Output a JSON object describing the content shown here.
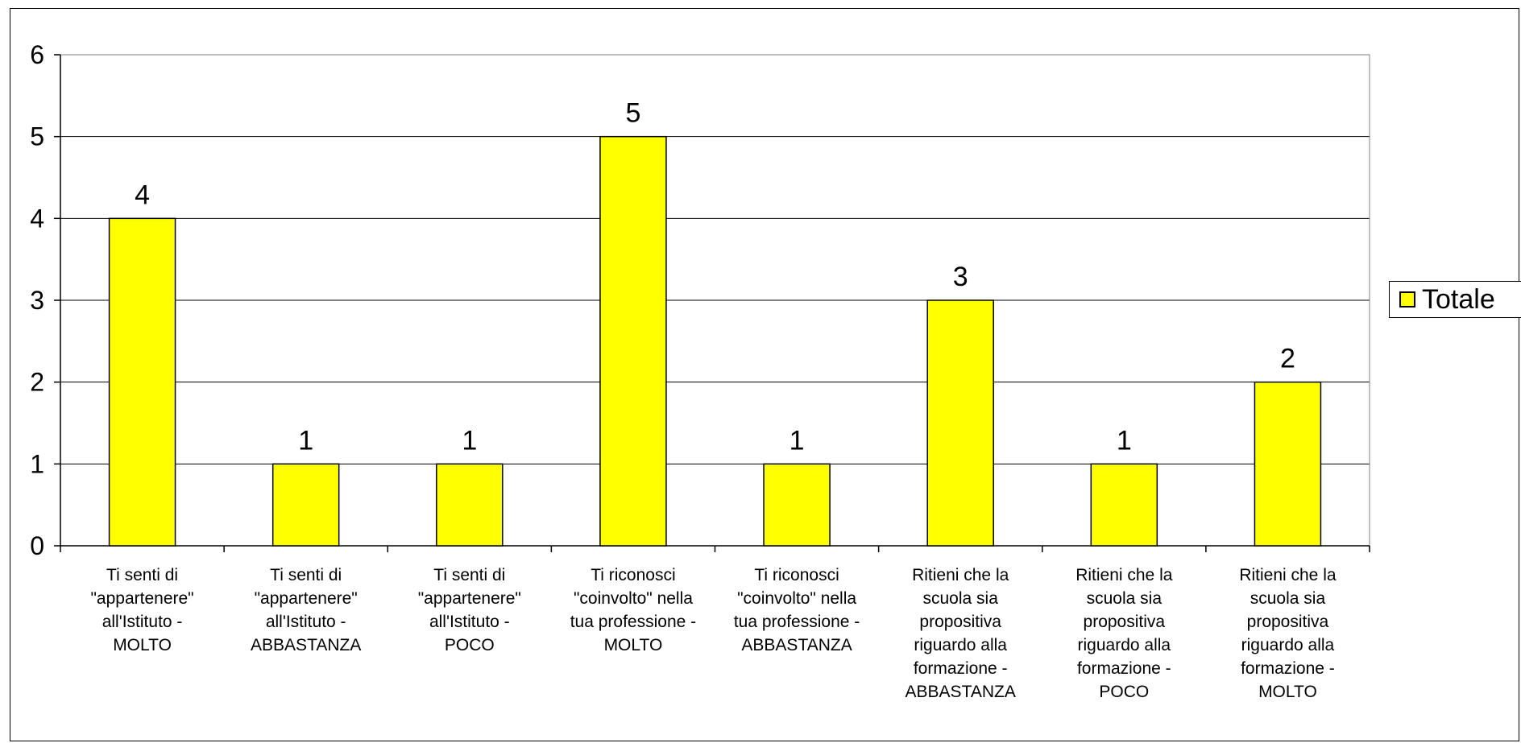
{
  "chart_data": {
    "type": "bar",
    "title": "",
    "xlabel": "",
    "ylabel": "",
    "ylim": [
      0,
      6
    ],
    "yticks": [
      "0",
      "1",
      "2",
      "3",
      "4",
      "5",
      "6"
    ],
    "grid": true,
    "legend_position": "right",
    "bar_color": "#ffff00",
    "categories": [
      "Ti senti di \"appartenere\" all'Istituto - MOLTO",
      "Ti senti di \"appartenere\" all'Istituto - ABBASTANZA",
      "Ti senti di \"appartenere\" all'Istituto - POCO",
      "Ti riconosci \"coinvolto\" nella tua professione - MOLTO",
      "Ti riconosci \"coinvolto\" nella tua professione - ABBASTANZA",
      "Ritieni che la scuola sia propositiva riguardo alla formazione - ABBASTANZA",
      "Ritieni che la scuola sia propositiva riguardo alla formazione - POCO",
      "Ritieni che la scuola sia propositiva riguardo alla formazione - MOLTO"
    ],
    "category_label_lines": [
      [
        "Ti senti di",
        "\"appartenere\"",
        "all'Istituto -",
        "MOLTO"
      ],
      [
        "Ti senti di",
        "\"appartenere\"",
        "all'Istituto -",
        "ABBASTANZA"
      ],
      [
        "Ti senti di",
        "\"appartenere\"",
        "all'Istituto -",
        "POCO"
      ],
      [
        "Ti riconosci",
        "\"coinvolto\" nella",
        "tua professione -",
        "MOLTO"
      ],
      [
        "Ti riconosci",
        "\"coinvolto\" nella",
        "tua professione -",
        "ABBASTANZA"
      ],
      [
        "Ritieni che la",
        "scuola sia",
        "propositiva",
        "riguardo alla",
        "formazione -",
        "ABBASTANZA"
      ],
      [
        "Ritieni che la",
        "scuola sia",
        "propositiva",
        "riguardo alla",
        "formazione -",
        "POCO"
      ],
      [
        "Ritieni che la",
        "scuola sia",
        "propositiva",
        "riguardo alla",
        "formazione -",
        "MOLTO"
      ]
    ],
    "series": [
      {
        "name": "Totale",
        "values": [
          4,
          1,
          1,
          5,
          1,
          3,
          1,
          2
        ]
      }
    ]
  },
  "legend": {
    "label": "Totale"
  }
}
